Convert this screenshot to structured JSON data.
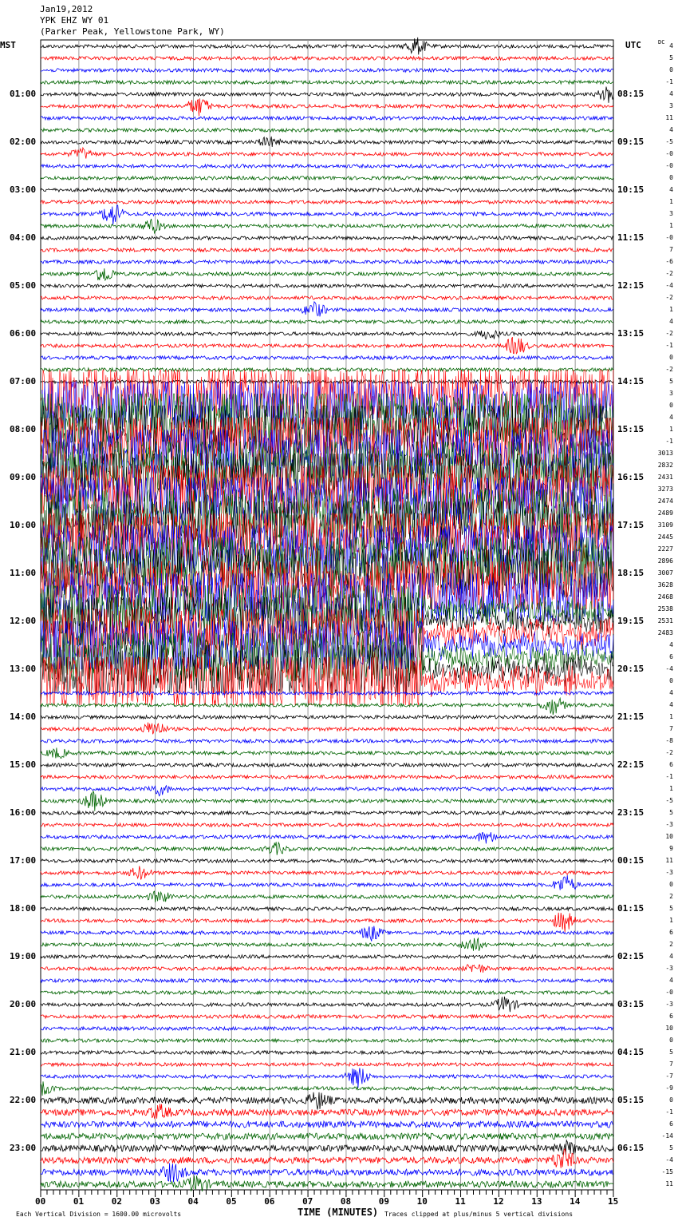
{
  "header": {
    "date": "Jan19,2012",
    "station": "YPK EHZ WY 01",
    "location": "(Parker Peak, Yellowstone Park, WY)"
  },
  "chart_data": {
    "type": "line",
    "subtype": "helicorder",
    "left_axis_title": "MST",
    "right_axis_title": "UTC",
    "dc_title": "DC",
    "xlabel": "TIME (MINUTES)",
    "xlim": [
      0,
      15
    ],
    "x_ticks": [
      "00",
      "01",
      "02",
      "03",
      "04",
      "05",
      "06",
      "07",
      "08",
      "09",
      "10",
      "11",
      "12",
      "13",
      "14",
      "15"
    ],
    "rows_per_hour": 4,
    "row_count": 96,
    "trace_colors": [
      "#000000",
      "#ff0000",
      "#0000ff",
      "#006400"
    ],
    "left_time_labels": [
      "01:00",
      "02:00",
      "03:00",
      "04:00",
      "05:00",
      "06:00",
      "07:00",
      "08:00",
      "09:00",
      "10:00",
      "11:00",
      "12:00",
      "13:00",
      "14:00",
      "15:00",
      "16:00",
      "17:00",
      "18:00",
      "19:00",
      "20:00",
      "21:00",
      "22:00",
      "23:00"
    ],
    "right_time_labels": [
      "08:15",
      "09:15",
      "10:15",
      "11:15",
      "12:15",
      "13:15",
      "14:15",
      "15:15",
      "16:15",
      "17:15",
      "18:15",
      "19:15",
      "20:15",
      "21:15",
      "22:15",
      "23:15",
      "00:15",
      "01:15",
      "02:15",
      "03:15",
      "04:15",
      "05:15",
      "06:15"
    ],
    "dc_offsets": [
      "4",
      "5",
      "0",
      "-1",
      "4",
      "3",
      "11",
      "4",
      "-5",
      "-0",
      "-0",
      "0",
      "4",
      "1",
      "3",
      "1",
      "-0",
      "7",
      "-6",
      "-2",
      "-4",
      "-2",
      "1",
      "4",
      "-2",
      "-1",
      "0",
      "-2",
      "5",
      "3",
      "0",
      "4",
      "1",
      "-1",
      "3013",
      "2832",
      "2431",
      "3273",
      "2474",
      "2489",
      "3109",
      "2445",
      "2227",
      "2896",
      "3007",
      "3628",
      "2468",
      "2538",
      "2531",
      "2483",
      "4",
      "6",
      "-4",
      "0",
      "4",
      "4",
      "1",
      "7",
      "-8",
      "-2",
      "6",
      "-1",
      "1",
      "-5",
      "5",
      "-3",
      "10",
      "9",
      "11",
      "-3",
      "0",
      "2",
      "5",
      "1",
      "6",
      "2",
      "4",
      "-3",
      "4",
      "-0",
      "-3",
      "6",
      "10",
      "0",
      "5",
      "7",
      "-7",
      "-9",
      "0",
      "-1",
      "6",
      "-14",
      "5",
      "-4",
      "-15",
      "11"
    ],
    "saturated_rows": [
      29,
      53
    ],
    "scale_note": "Each Vertical Division = 1600.00 microvolts",
    "clip_note": "Traces clipped at plus/minus 5 vertical divisions"
  }
}
